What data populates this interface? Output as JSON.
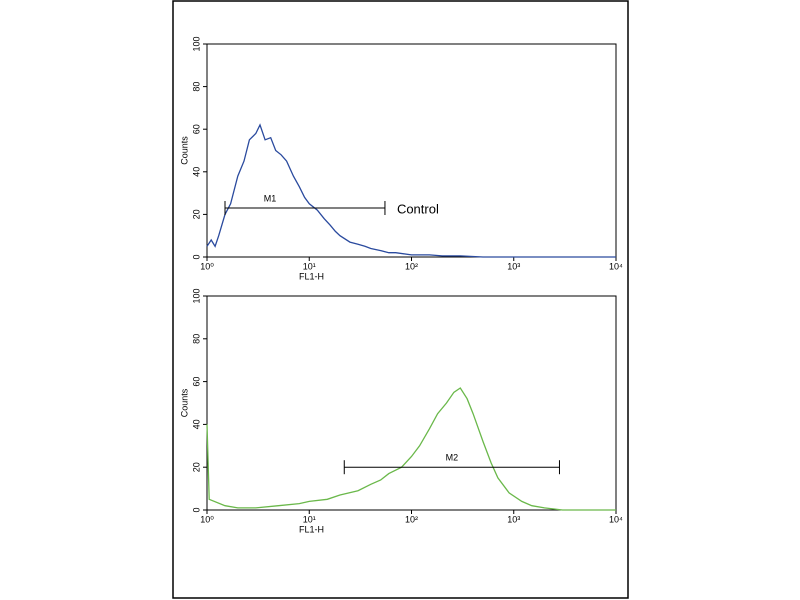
{
  "chart_data": [
    {
      "type": "line",
      "xlabel": "FL1-H",
      "ylabel": "Counts",
      "log_x": true,
      "xlim": [
        1,
        10000
      ],
      "ylim": [
        0,
        100
      ],
      "xticks": [
        {
          "value": 1,
          "label": "10⁰"
        },
        {
          "value": 10,
          "label": "10¹"
        },
        {
          "value": 100,
          "label": "10²"
        },
        {
          "value": 1000,
          "label": "10³"
        },
        {
          "value": 10000,
          "label": "10⁴"
        }
      ],
      "yticks": [
        0,
        20,
        40,
        60,
        80,
        100
      ],
      "series": [
        {
          "color": "#2a4a9e",
          "x": [
            1,
            1.1,
            1.2,
            1.3,
            1.5,
            1.7,
            2,
            2.3,
            2.6,
            3,
            3.3,
            3.7,
            4.2,
            4.7,
            5.3,
            6,
            7,
            8,
            9,
            10,
            12,
            14,
            16,
            18,
            20,
            25,
            30,
            35,
            40,
            50,
            60,
            70,
            100,
            150,
            200,
            300,
            500,
            1000,
            3000,
            10000
          ],
          "values": [
            5,
            8,
            5,
            10,
            20,
            25,
            38,
            45,
            55,
            58,
            62,
            55,
            56,
            50,
            48,
            45,
            38,
            33,
            28,
            25,
            22,
            18,
            15,
            12,
            10,
            7,
            6,
            5,
            4,
            3,
            2,
            2,
            1,
            1,
            0.5,
            0.5,
            0,
            0,
            0,
            0
          ]
        }
      ],
      "markers": [
        {
          "label": "M1",
          "x": [
            1.5,
            55
          ],
          "y": 23
        }
      ],
      "annotations": [
        {
          "text": "Control"
        }
      ]
    },
    {
      "type": "line",
      "xlabel": "FL1-H",
      "ylabel": "Counts",
      "log_x": true,
      "xlim": [
        1,
        10000
      ],
      "ylim": [
        0,
        100
      ],
      "xticks": [
        {
          "value": 1,
          "label": "10⁰"
        },
        {
          "value": 10,
          "label": "10¹"
        },
        {
          "value": 100,
          "label": "10²"
        },
        {
          "value": 1000,
          "label": "10³"
        },
        {
          "value": 10000,
          "label": "10⁴"
        }
      ],
      "yticks": [
        0,
        20,
        40,
        60,
        80,
        100
      ],
      "series": [
        {
          "color": "#6ab84a",
          "x": [
            1,
            1.05,
            1.5,
            2,
            3,
            5,
            8,
            10,
            15,
            20,
            30,
            40,
            50,
            60,
            80,
            100,
            120,
            150,
            180,
            220,
            260,
            300,
            350,
            400,
            500,
            600,
            700,
            900,
            1200,
            1500,
            2000,
            3000,
            5000,
            10000
          ],
          "values": [
            40,
            5,
            2,
            1,
            1,
            2,
            3,
            4,
            5,
            7,
            9,
            12,
            14,
            17,
            20,
            25,
            30,
            38,
            45,
            50,
            55,
            57,
            52,
            45,
            32,
            22,
            15,
            8,
            4,
            2,
            1,
            0,
            0,
            0
          ]
        }
      ],
      "markers": [
        {
          "label": "M2",
          "x": [
            22,
            2800
          ],
          "y": 20
        }
      ]
    }
  ]
}
